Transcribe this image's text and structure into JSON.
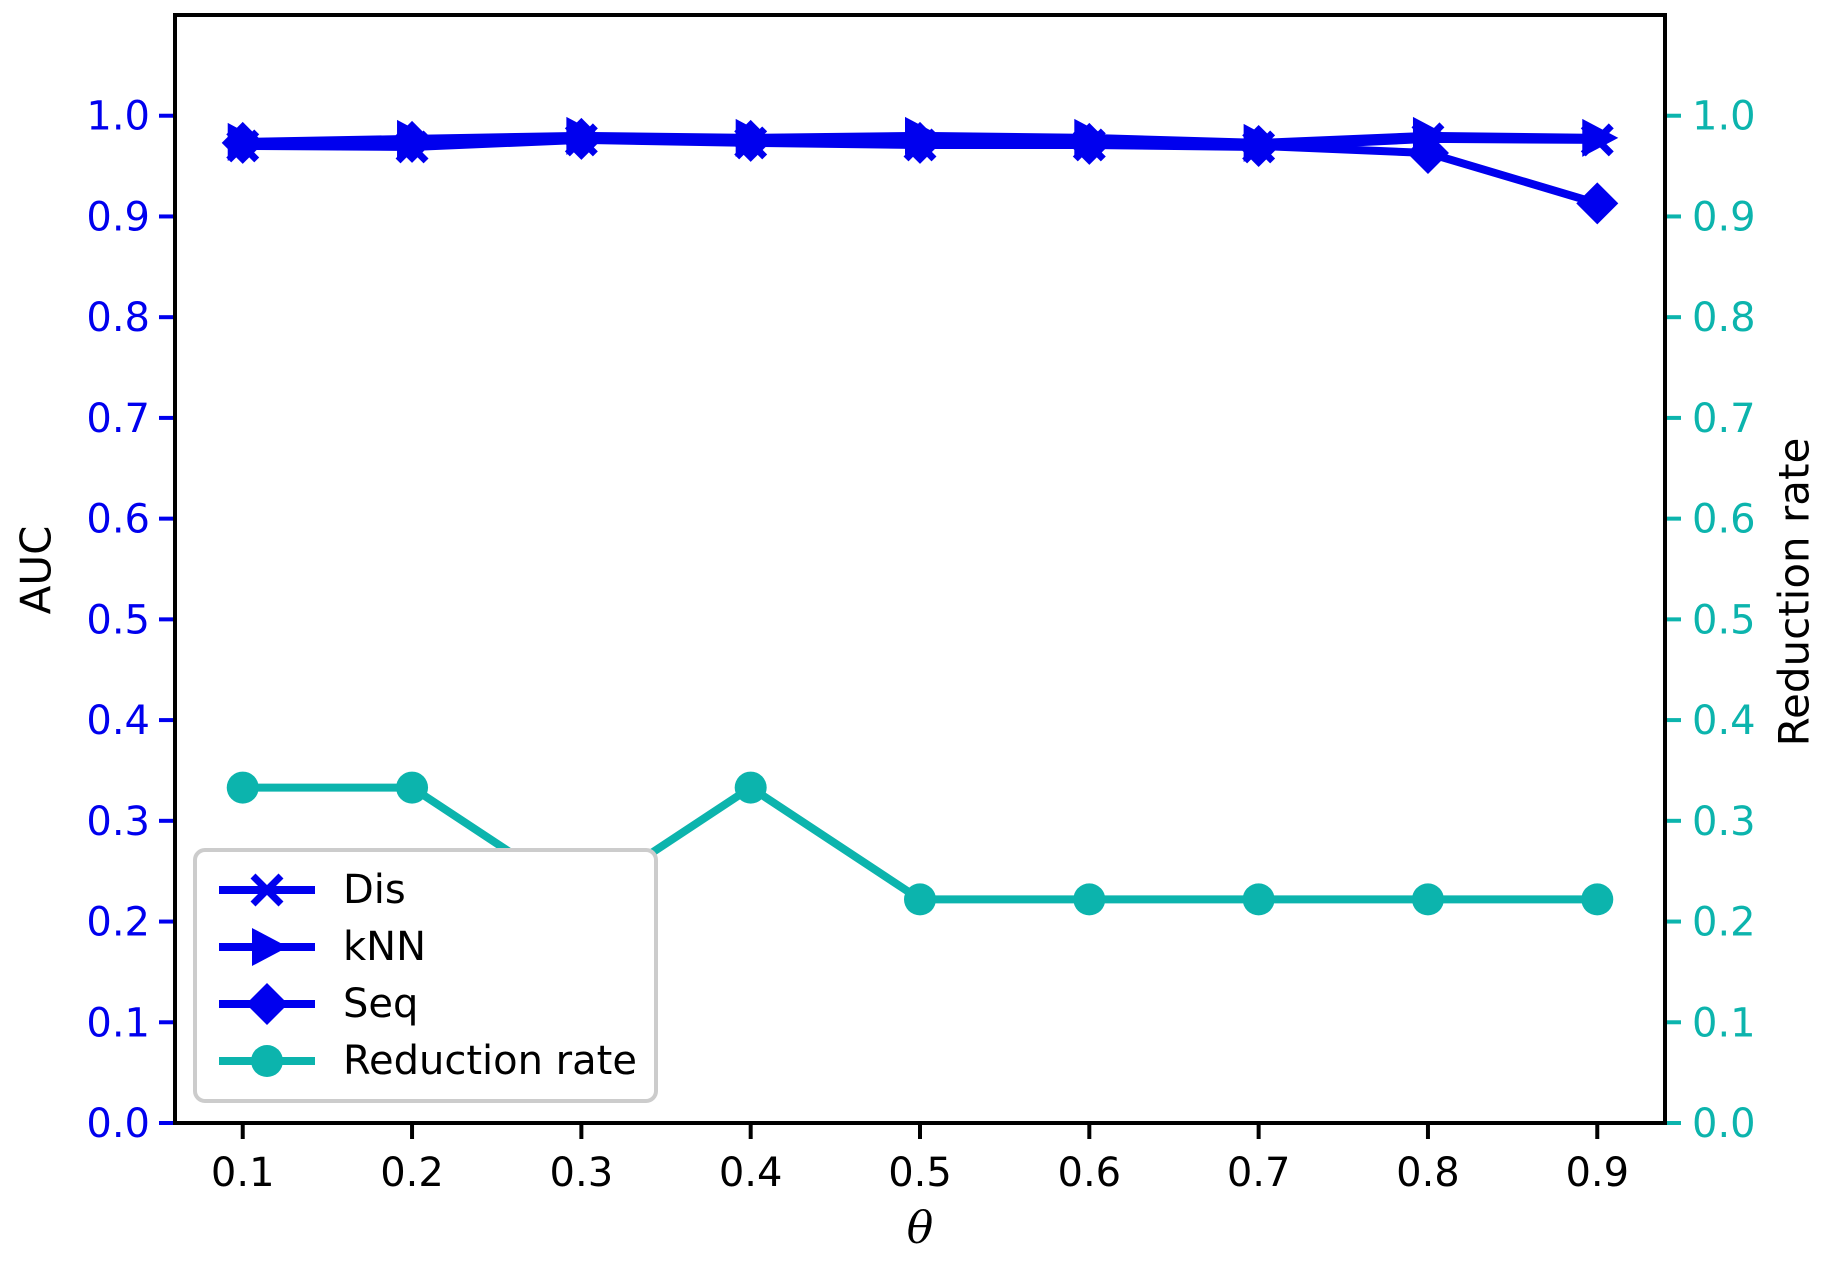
{
  "chart_data": {
    "type": "line",
    "title": "",
    "xlabel": "θ",
    "ylabel_left": "AUC",
    "ylabel_right": "Reduction rate",
    "x": [
      0.1,
      0.2,
      0.3,
      0.4,
      0.5,
      0.6,
      0.7,
      0.8,
      0.9
    ],
    "series": [
      {
        "name": "Dis",
        "axis": "left",
        "marker": "x",
        "color": "#0000ee",
        "values": [
          0.97,
          0.969,
          0.976,
          0.973,
          0.971,
          0.971,
          0.969,
          0.977,
          0.976
        ]
      },
      {
        "name": "kNN",
        "axis": "left",
        "marker": "triangle-right",
        "color": "#0000ee",
        "values": [
          0.974,
          0.977,
          0.98,
          0.978,
          0.98,
          0.978,
          0.973,
          0.98,
          0.978
        ]
      },
      {
        "name": "Seq",
        "axis": "left",
        "marker": "diamond",
        "color": "#0000ee",
        "values": [
          0.973,
          0.974,
          0.977,
          0.975,
          0.973,
          0.972,
          0.97,
          0.963,
          0.913
        ]
      },
      {
        "name": "Reduction rate",
        "axis": "right",
        "marker": "circle",
        "color": "#0cb4ad",
        "values": [
          0.333,
          0.333,
          0.222,
          0.333,
          0.222,
          0.222,
          0.222,
          0.222,
          0.222
        ]
      }
    ],
    "xlim": [
      0.06,
      0.94
    ],
    "ylim": [
      0.0,
      1.1
    ],
    "xticks": {
      "values": [
        0.1,
        0.2,
        0.3,
        0.4,
        0.5,
        0.6,
        0.7,
        0.8,
        0.9
      ],
      "labels": [
        "0.1",
        "0.2",
        "0.3",
        "0.4",
        "0.5",
        "0.6",
        "0.7",
        "0.8",
        "0.9"
      ],
      "color": "#000000"
    },
    "yticks_left": {
      "values": [
        0.0,
        0.1,
        0.2,
        0.3,
        0.4,
        0.5,
        0.6,
        0.7,
        0.8,
        0.9,
        1.0
      ],
      "labels": [
        "0.0",
        "0.1",
        "0.2",
        "0.3",
        "0.4",
        "0.5",
        "0.6",
        "0.7",
        "0.8",
        "0.9",
        "1.0"
      ],
      "color": "#0000ee"
    },
    "yticks_right": {
      "values": [
        0.0,
        0.1,
        0.2,
        0.3,
        0.4,
        0.5,
        0.6,
        0.7,
        0.8,
        0.9,
        1.0
      ],
      "labels": [
        "0.0",
        "0.1",
        "0.2",
        "0.3",
        "0.4",
        "0.5",
        "0.6",
        "0.7",
        "0.8",
        "0.9",
        "1.0"
      ],
      "color": "#0cb4ad"
    },
    "legend": {
      "position": "lower left",
      "entries": [
        "Dis",
        "kNN",
        "Seq",
        "Reduction rate"
      ],
      "border_color": "#cccccc"
    },
    "grid": false,
    "spine_color": "#000000"
  }
}
